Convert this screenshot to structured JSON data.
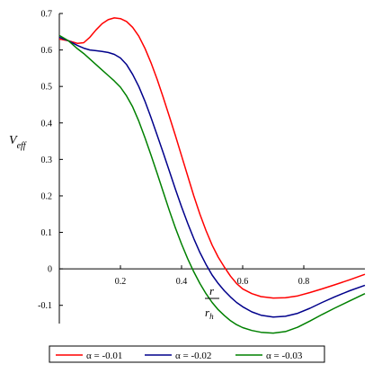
{
  "chart_data": {
    "type": "line",
    "title": "",
    "ylabel": "V_eff",
    "ylabel_main": "V",
    "ylabel_sub": "eff",
    "xlabel_num": "r",
    "xlabel_den": "r",
    "xlabel_den_sub": "h",
    "xlim": [
      0,
      1.0
    ],
    "ylim": [
      -0.15,
      0.7
    ],
    "xticks": [
      0.2,
      0.4,
      0.6,
      0.8
    ],
    "xtick_labels": [
      "0.2",
      "0.4",
      "0.6",
      "0.8"
    ],
    "yticks": [
      0.7,
      0.6,
      0.5,
      0.4,
      0.3,
      0.2,
      0.1,
      0,
      -0.1
    ],
    "ytick_labels": [
      "0.7",
      "0.6",
      "0.5",
      "0.4",
      "0.3",
      "0.2",
      "0.1",
      "0",
      "-0.1"
    ],
    "grid": false,
    "legend_position": "bottom",
    "series": [
      {
        "name": "α = -0.01",
        "color": "#ff0000",
        "x": [
          0,
          0.03,
          0.06,
          0.08,
          0.1,
          0.12,
          0.14,
          0.16,
          0.18,
          0.2,
          0.22,
          0.24,
          0.26,
          0.28,
          0.3,
          0.32,
          0.34,
          0.36,
          0.38,
          0.4,
          0.42,
          0.44,
          0.46,
          0.48,
          0.5,
          0.52,
          0.54,
          0.56,
          0.58,
          0.6,
          0.63,
          0.66,
          0.7,
          0.74,
          0.78,
          0.82,
          0.86,
          0.9,
          0.95,
          1.0
        ],
        "y": [
          0.63,
          0.625,
          0.618,
          0.62,
          0.635,
          0.655,
          0.672,
          0.683,
          0.688,
          0.686,
          0.678,
          0.662,
          0.638,
          0.605,
          0.565,
          0.52,
          0.47,
          0.418,
          0.365,
          0.31,
          0.255,
          0.2,
          0.15,
          0.105,
          0.065,
          0.032,
          0.005,
          -0.02,
          -0.04,
          -0.055,
          -0.068,
          -0.076,
          -0.08,
          -0.079,
          -0.074,
          -0.065,
          -0.055,
          -0.044,
          -0.03,
          -0.015
        ]
      },
      {
        "name": "α = -0.02",
        "color": "#00008b",
        "x": [
          0,
          0.03,
          0.06,
          0.08,
          0.1,
          0.12,
          0.14,
          0.16,
          0.18,
          0.2,
          0.22,
          0.24,
          0.26,
          0.28,
          0.3,
          0.32,
          0.34,
          0.36,
          0.38,
          0.4,
          0.42,
          0.44,
          0.46,
          0.48,
          0.5,
          0.52,
          0.54,
          0.56,
          0.58,
          0.6,
          0.63,
          0.66,
          0.7,
          0.74,
          0.78,
          0.82,
          0.86,
          0.9,
          0.95,
          1.0
        ],
        "y": [
          0.635,
          0.625,
          0.612,
          0.605,
          0.6,
          0.598,
          0.596,
          0.593,
          0.588,
          0.578,
          0.56,
          0.533,
          0.5,
          0.46,
          0.415,
          0.367,
          0.318,
          0.268,
          0.218,
          0.17,
          0.125,
          0.083,
          0.045,
          0.012,
          -0.017,
          -0.04,
          -0.06,
          -0.077,
          -0.092,
          -0.104,
          -0.118,
          -0.127,
          -0.132,
          -0.13,
          -0.122,
          -0.108,
          -0.092,
          -0.077,
          -0.06,
          -0.045
        ]
      },
      {
        "name": "α = -0.03",
        "color": "#008000",
        "x": [
          0,
          0.03,
          0.06,
          0.08,
          0.1,
          0.12,
          0.14,
          0.16,
          0.18,
          0.2,
          0.22,
          0.24,
          0.26,
          0.28,
          0.3,
          0.32,
          0.34,
          0.36,
          0.38,
          0.4,
          0.42,
          0.44,
          0.46,
          0.48,
          0.5,
          0.52,
          0.54,
          0.56,
          0.58,
          0.6,
          0.63,
          0.66,
          0.7,
          0.74,
          0.78,
          0.82,
          0.86,
          0.9,
          0.95,
          1.0
        ],
        "y": [
          0.64,
          0.625,
          0.603,
          0.59,
          0.575,
          0.56,
          0.545,
          0.53,
          0.515,
          0.498,
          0.474,
          0.444,
          0.405,
          0.36,
          0.312,
          0.262,
          0.211,
          0.16,
          0.112,
          0.068,
          0.028,
          -0.008,
          -0.04,
          -0.068,
          -0.092,
          -0.112,
          -0.128,
          -0.142,
          -0.153,
          -0.161,
          -0.169,
          -0.174,
          -0.176,
          -0.172,
          -0.16,
          -0.143,
          -0.125,
          -0.108,
          -0.088,
          -0.068
        ]
      }
    ]
  }
}
